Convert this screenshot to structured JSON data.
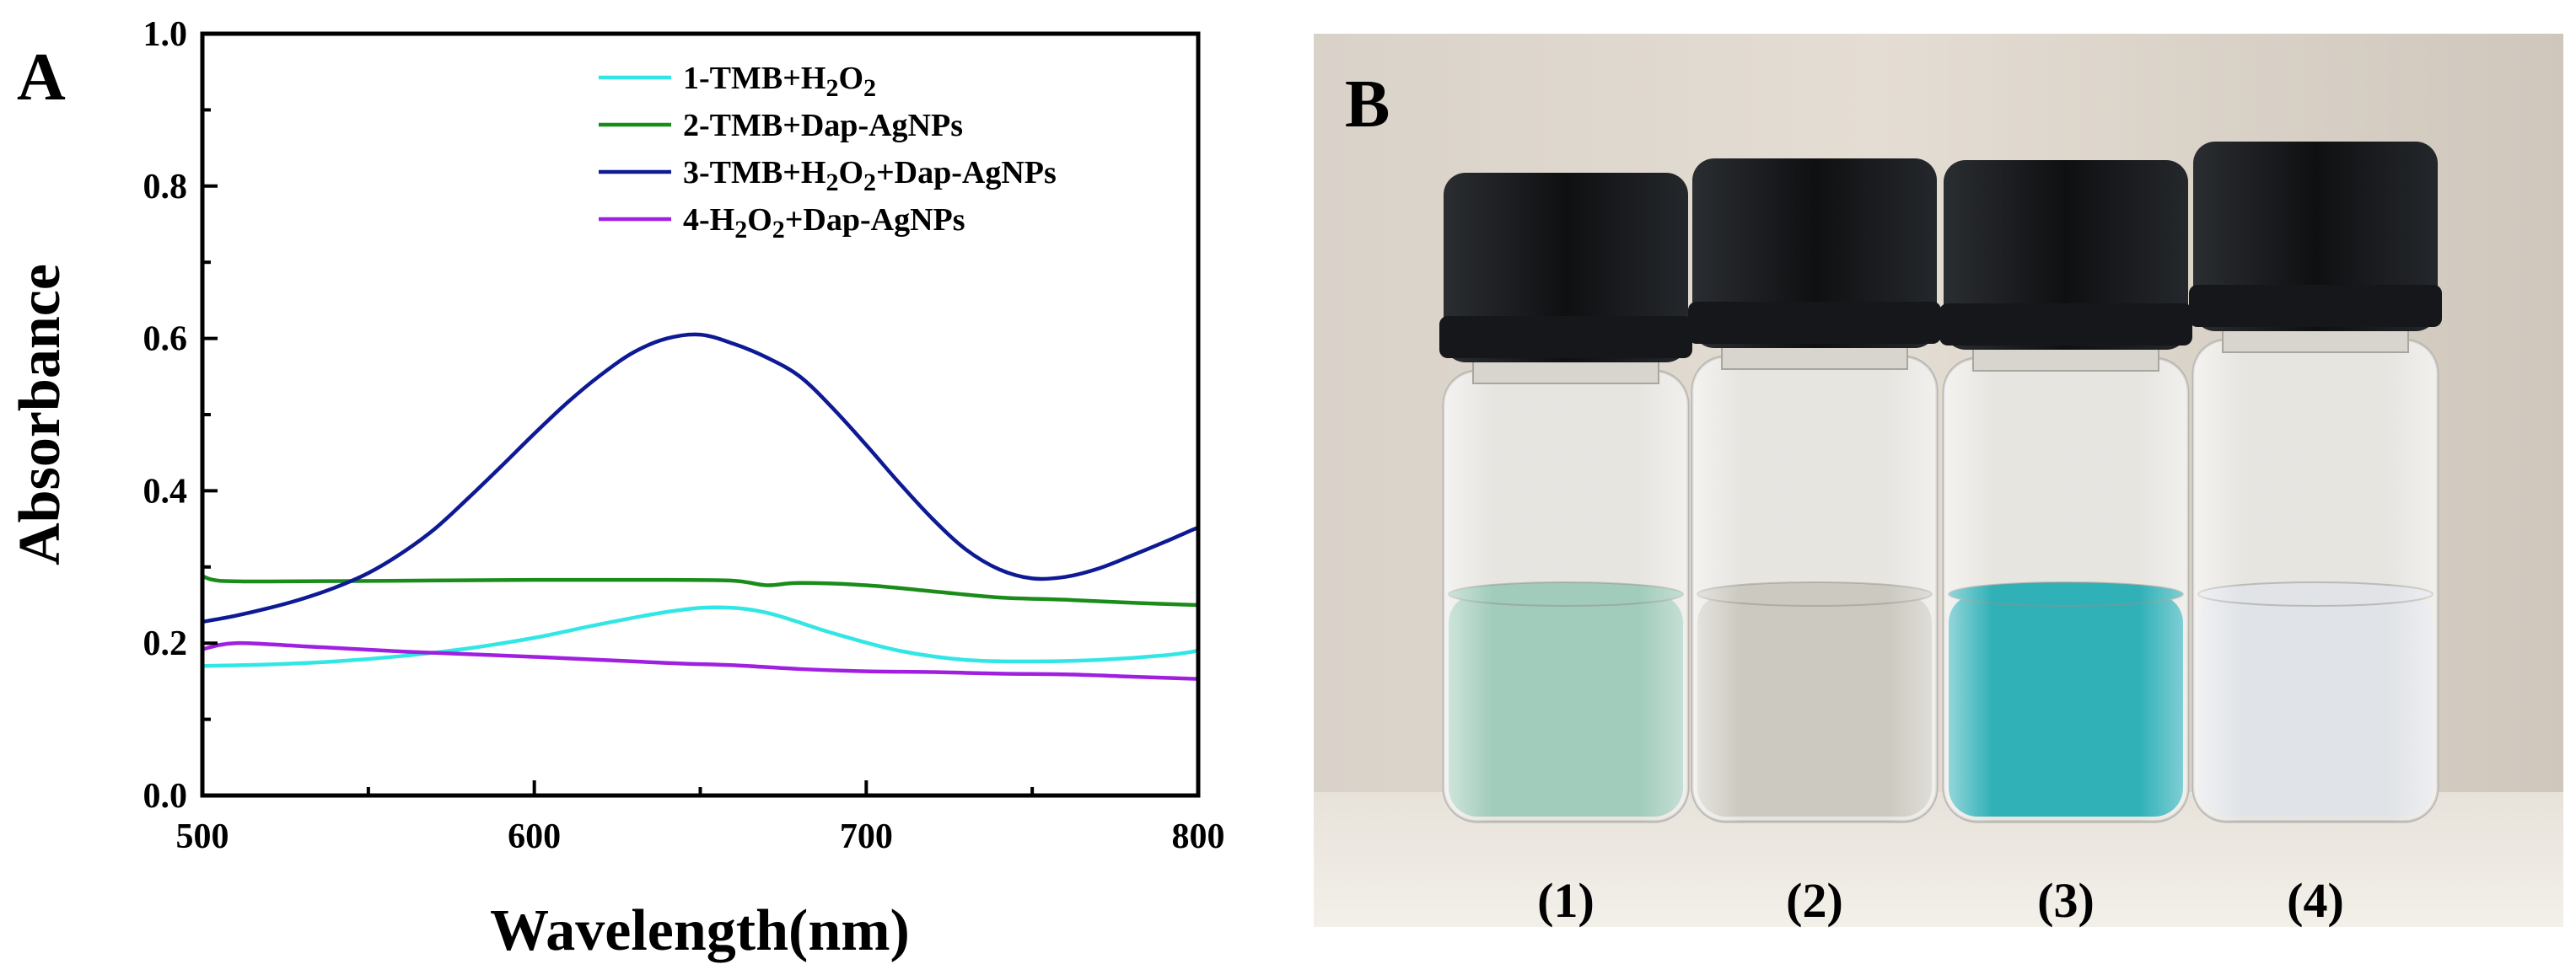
{
  "panel_a_letter": "A",
  "panel_b_letter": "B",
  "chart_data": {
    "type": "line",
    "title": "",
    "xlabel": "Wavelength(nm)",
    "ylabel": "Absorbance",
    "xlim": [
      500,
      800
    ],
    "ylim": [
      0.0,
      1.0
    ],
    "xticks": [
      500,
      600,
      700,
      800
    ],
    "yticks": [
      0.0,
      0.2,
      0.4,
      0.6,
      0.8,
      1.0
    ],
    "xtick_labels": [
      "500",
      "600",
      "700",
      "800"
    ],
    "ytick_labels": [
      "0.0",
      "0.2",
      "0.4",
      "0.6",
      "0.8",
      "1.0"
    ],
    "legend_position": "top-right",
    "grid": false,
    "series": [
      {
        "name": "1-TMB+H2O2",
        "legend_parts": [
          [
            "1-TMB+H",
            false
          ],
          [
            "2",
            true
          ],
          [
            "O",
            false
          ],
          [
            "2",
            true
          ]
        ],
        "color": "#33e6e6",
        "x": [
          500,
          520,
          540,
          560,
          580,
          600,
          620,
          640,
          655,
          670,
          690,
          710,
          730,
          750,
          770,
          790,
          800
        ],
        "y": [
          0.17,
          0.172,
          0.176,
          0.183,
          0.193,
          0.207,
          0.225,
          0.241,
          0.247,
          0.24,
          0.213,
          0.19,
          0.178,
          0.176,
          0.178,
          0.184,
          0.19
        ]
      },
      {
        "name": "2-TMB+Dap-AgNPs",
        "legend_parts": [
          [
            "2-TMB+Dap-AgNPs",
            false
          ]
        ],
        "color": "#1a8c1a",
        "x": [
          500,
          505,
          520,
          560,
          600,
          640,
          660,
          670,
          680,
          700,
          720,
          740,
          760,
          780,
          800
        ],
        "y": [
          0.288,
          0.282,
          0.281,
          0.282,
          0.283,
          0.283,
          0.282,
          0.276,
          0.279,
          0.276,
          0.268,
          0.26,
          0.257,
          0.253,
          0.25
        ]
      },
      {
        "name": "3-TMB+H2O2+Dap-AgNPs",
        "legend_parts": [
          [
            "3-TMB+H",
            false
          ],
          [
            "2",
            true
          ],
          [
            "O",
            false
          ],
          [
            "2",
            true
          ],
          [
            "+Dap-AgNPs",
            false
          ]
        ],
        "color": "#0d1a94",
        "x": [
          500,
          510,
          520,
          530,
          540,
          550,
          560,
          570,
          580,
          590,
          600,
          610,
          620,
          630,
          640,
          650,
          660,
          670,
          680,
          690,
          700,
          710,
          720,
          730,
          740,
          750,
          760,
          770,
          780,
          790,
          800
        ],
        "y": [
          0.228,
          0.236,
          0.246,
          0.258,
          0.273,
          0.292,
          0.318,
          0.35,
          0.39,
          0.432,
          0.475,
          0.516,
          0.552,
          0.582,
          0.6,
          0.605,
          0.593,
          0.575,
          0.55,
          0.508,
          0.46,
          0.41,
          0.363,
          0.323,
          0.297,
          0.285,
          0.287,
          0.298,
          0.315,
          0.333,
          0.352
        ]
      },
      {
        "name": "4-H2O2+Dap-AgNPs",
        "legend_parts": [
          [
            "4-H",
            false
          ],
          [
            "2",
            true
          ],
          [
            "O",
            false
          ],
          [
            "2",
            true
          ],
          [
            "+Dap-AgNPs",
            false
          ]
        ],
        "color": "#a020e0",
        "x": [
          500,
          510,
          530,
          560,
          600,
          640,
          660,
          680,
          700,
          720,
          740,
          760,
          780,
          800
        ],
        "y": [
          0.192,
          0.2,
          0.196,
          0.189,
          0.182,
          0.174,
          0.171,
          0.166,
          0.163,
          0.162,
          0.16,
          0.159,
          0.156,
          0.153
        ]
      }
    ]
  },
  "photo": {
    "vial_labels": [
      "(1)",
      "(2)",
      "(3)",
      "(4)"
    ],
    "vial_liquid_colors": [
      "#9cc9b8",
      "#c9c6bd",
      "#25adb4",
      "#dfe2e6"
    ],
    "cap_color": "#15171a"
  }
}
